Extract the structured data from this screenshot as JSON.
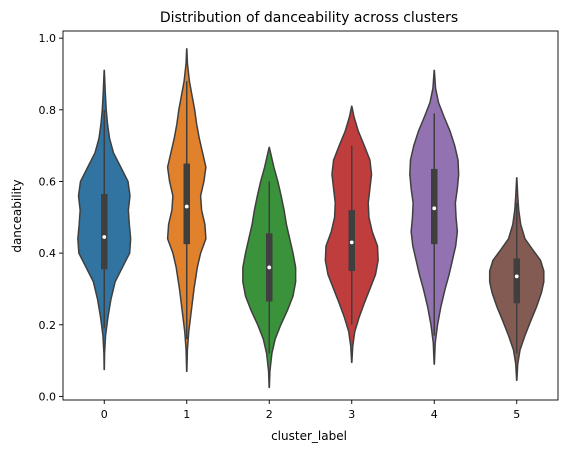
{
  "chart_data": {
    "type": "violin",
    "title": "Distribution of danceability across clusters",
    "xlabel": "cluster_label",
    "ylabel": "danceability",
    "ylim": [
      -0.01,
      1.02
    ],
    "yticks": [
      0.0,
      0.2,
      0.4,
      0.6,
      0.8,
      1.0
    ],
    "ytick_labels": [
      "0.0",
      "0.2",
      "0.4",
      "0.6",
      "0.8",
      "1.0"
    ],
    "categories": [
      "0",
      "1",
      "2",
      "3",
      "4",
      "5"
    ],
    "grid": false,
    "legend": "none",
    "series": [
      {
        "category": "0",
        "color": "#3274a1",
        "min": 0.075,
        "q1": 0.355,
        "median": 0.445,
        "q3": 0.565,
        "max": 0.91,
        "whisker_low": 0.19,
        "whisker_high": 0.8,
        "density": [
          [
            0.075,
            0.003
          ],
          [
            0.12,
            0.01
          ],
          [
            0.17,
            0.04
          ],
          [
            0.22,
            0.11
          ],
          [
            0.27,
            0.2
          ],
          [
            0.32,
            0.33
          ],
          [
            0.36,
            0.55
          ],
          [
            0.4,
            0.77
          ],
          [
            0.44,
            0.8
          ],
          [
            0.48,
            0.76
          ],
          [
            0.52,
            0.73
          ],
          [
            0.56,
            0.78
          ],
          [
            0.6,
            0.72
          ],
          [
            0.64,
            0.5
          ],
          [
            0.68,
            0.28
          ],
          [
            0.72,
            0.16
          ],
          [
            0.76,
            0.1
          ],
          [
            0.8,
            0.06
          ],
          [
            0.85,
            0.03
          ],
          [
            0.91,
            0.003
          ]
        ]
      },
      {
        "category": "1",
        "color": "#e1812c",
        "min": 0.07,
        "q1": 0.425,
        "median": 0.53,
        "q3": 0.65,
        "max": 0.97,
        "whisker_low": 0.16,
        "whisker_high": 0.88,
        "density": [
          [
            0.07,
            0.003
          ],
          [
            0.13,
            0.02
          ],
          [
            0.18,
            0.06
          ],
          [
            0.24,
            0.14
          ],
          [
            0.3,
            0.22
          ],
          [
            0.36,
            0.32
          ],
          [
            0.4,
            0.42
          ],
          [
            0.44,
            0.58
          ],
          [
            0.48,
            0.55
          ],
          [
            0.52,
            0.45
          ],
          [
            0.56,
            0.42
          ],
          [
            0.6,
            0.52
          ],
          [
            0.64,
            0.58
          ],
          [
            0.68,
            0.48
          ],
          [
            0.72,
            0.38
          ],
          [
            0.76,
            0.3
          ],
          [
            0.8,
            0.24
          ],
          [
            0.84,
            0.16
          ],
          [
            0.88,
            0.08
          ],
          [
            0.93,
            0.02
          ],
          [
            0.97,
            0.003
          ]
        ]
      },
      {
        "category": "2",
        "color": "#3a923a",
        "min": 0.025,
        "q1": 0.265,
        "median": 0.36,
        "q3": 0.455,
        "max": 0.695,
        "whisker_low": 0.12,
        "whisker_high": 0.6,
        "density": [
          [
            0.025,
            0.003
          ],
          [
            0.07,
            0.02
          ],
          [
            0.12,
            0.08
          ],
          [
            0.16,
            0.18
          ],
          [
            0.2,
            0.35
          ],
          [
            0.24,
            0.55
          ],
          [
            0.28,
            0.72
          ],
          [
            0.32,
            0.8
          ],
          [
            0.36,
            0.8
          ],
          [
            0.4,
            0.72
          ],
          [
            0.44,
            0.62
          ],
          [
            0.48,
            0.52
          ],
          [
            0.52,
            0.45
          ],
          [
            0.56,
            0.36
          ],
          [
            0.6,
            0.26
          ],
          [
            0.64,
            0.14
          ],
          [
            0.695,
            0.003
          ]
        ]
      },
      {
        "category": "3",
        "color": "#c03d3e",
        "min": 0.095,
        "q1": 0.35,
        "median": 0.43,
        "q3": 0.52,
        "max": 0.81,
        "whisker_low": 0.2,
        "whisker_high": 0.7,
        "density": [
          [
            0.095,
            0.003
          ],
          [
            0.14,
            0.03
          ],
          [
            0.18,
            0.09
          ],
          [
            0.22,
            0.22
          ],
          [
            0.26,
            0.38
          ],
          [
            0.3,
            0.55
          ],
          [
            0.34,
            0.72
          ],
          [
            0.38,
            0.8
          ],
          [
            0.42,
            0.78
          ],
          [
            0.46,
            0.62
          ],
          [
            0.5,
            0.52
          ],
          [
            0.54,
            0.5
          ],
          [
            0.58,
            0.55
          ],
          [
            0.62,
            0.6
          ],
          [
            0.66,
            0.55
          ],
          [
            0.7,
            0.38
          ],
          [
            0.74,
            0.2
          ],
          [
            0.78,
            0.07
          ],
          [
            0.81,
            0.003
          ]
        ]
      },
      {
        "category": "4",
        "color": "#9372b2",
        "min": 0.09,
        "q1": 0.425,
        "median": 0.525,
        "q3": 0.635,
        "max": 0.91,
        "whisker_low": 0.17,
        "whisker_high": 0.79,
        "density": [
          [
            0.09,
            0.003
          ],
          [
            0.15,
            0.03
          ],
          [
            0.2,
            0.1
          ],
          [
            0.25,
            0.2
          ],
          [
            0.3,
            0.33
          ],
          [
            0.34,
            0.45
          ],
          [
            0.38,
            0.55
          ],
          [
            0.42,
            0.65
          ],
          [
            0.46,
            0.7
          ],
          [
            0.5,
            0.66
          ],
          [
            0.54,
            0.64
          ],
          [
            0.58,
            0.7
          ],
          [
            0.62,
            0.74
          ],
          [
            0.66,
            0.72
          ],
          [
            0.7,
            0.62
          ],
          [
            0.74,
            0.48
          ],
          [
            0.78,
            0.3
          ],
          [
            0.82,
            0.13
          ],
          [
            0.86,
            0.04
          ],
          [
            0.91,
            0.003
          ]
        ]
      },
      {
        "category": "5",
        "color": "#845b53",
        "min": 0.045,
        "q1": 0.26,
        "median": 0.335,
        "q3": 0.385,
        "max": 0.61,
        "whisker_low": 0.12,
        "whisker_high": 0.54,
        "density": [
          [
            0.045,
            0.003
          ],
          [
            0.09,
            0.03
          ],
          [
            0.13,
            0.1
          ],
          [
            0.17,
            0.25
          ],
          [
            0.21,
            0.42
          ],
          [
            0.25,
            0.6
          ],
          [
            0.29,
            0.75
          ],
          [
            0.32,
            0.82
          ],
          [
            0.35,
            0.82
          ],
          [
            0.38,
            0.72
          ],
          [
            0.41,
            0.48
          ],
          [
            0.44,
            0.25
          ],
          [
            0.48,
            0.12
          ],
          [
            0.52,
            0.06
          ],
          [
            0.56,
            0.03
          ],
          [
            0.61,
            0.003
          ]
        ]
      }
    ]
  }
}
